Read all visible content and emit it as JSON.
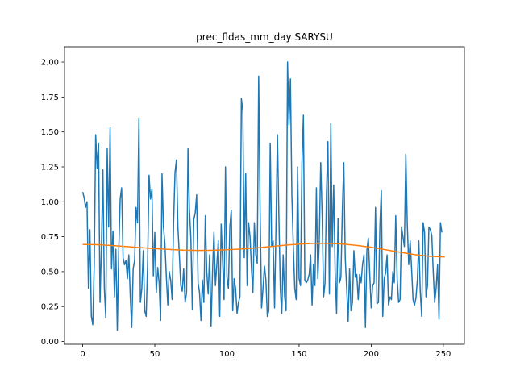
{
  "chart_data": {
    "type": "line",
    "title": "prec_fldas_mm_day SARYSU",
    "xlabel": "",
    "ylabel": "",
    "xlim": [
      -12.6,
      264.6
    ],
    "ylim": [
      -0.02,
      2.11
    ],
    "xticks": [
      0,
      50,
      100,
      150,
      200,
      250
    ],
    "xtick_labels": [
      "0",
      "50",
      "100",
      "150",
      "200",
      "250"
    ],
    "yticks": [
      0.0,
      0.25,
      0.5,
      0.75,
      1.0,
      1.25,
      1.5,
      1.75,
      2.0
    ],
    "ytick_labels": [
      "0.00",
      "0.25",
      "0.50",
      "0.75",
      "1.00",
      "1.25",
      "1.50",
      "1.75",
      "2.00"
    ],
    "grid": false,
    "series": [
      {
        "name": "prec_fldas_mm_day",
        "color": "#1f77b4",
        "x_start": 0,
        "values": [
          1.07,
          1.03,
          0.96,
          1.0,
          0.38,
          0.8,
          0.18,
          0.12,
          0.55,
          1.48,
          1.24,
          1.42,
          0.28,
          0.68,
          1.23,
          0.38,
          0.17,
          1.38,
          0.82,
          1.53,
          0.52,
          0.79,
          0.32,
          0.66,
          0.08,
          0.65,
          1.02,
          1.1,
          0.6,
          0.55,
          0.58,
          0.45,
          0.62,
          0.32,
          0.1,
          0.52,
          0.58,
          0.96,
          0.85,
          1.6,
          0.28,
          0.38,
          0.65,
          0.22,
          0.18,
          0.55,
          1.19,
          1.02,
          1.09,
          0.47,
          0.78,
          0.35,
          0.53,
          0.42,
          0.15,
          1.2,
          0.82,
          0.7,
          0.46,
          0.26,
          0.5,
          0.44,
          0.3,
          0.85,
          1.21,
          1.3,
          0.82,
          0.62,
          0.4,
          0.36,
          0.52,
          0.28,
          0.35,
          1.38,
          0.94,
          0.74,
          0.23,
          0.87,
          0.92,
          1.05,
          0.42,
          0.35,
          0.15,
          0.44,
          0.28,
          0.9,
          0.5,
          0.34,
          0.62,
          0.11,
          0.5,
          0.78,
          0.4,
          0.55,
          0.72,
          0.18,
          0.84,
          0.58,
          0.3,
          1.25,
          0.46,
          0.38,
          0.82,
          0.94,
          0.22,
          0.45,
          0.38,
          0.2,
          0.28,
          0.32,
          1.74,
          1.65,
          0.6,
          1.2,
          0.4,
          0.85,
          0.75,
          0.52,
          0.35,
          0.85,
          0.62,
          0.56,
          1.9,
          0.92,
          0.24,
          0.38,
          0.54,
          0.44,
          0.18,
          0.22,
          1.42,
          0.68,
          0.72,
          0.24,
          0.82,
          1.48,
          0.9,
          0.38,
          0.2,
          0.62,
          0.32,
          0.22,
          2.0,
          1.55,
          1.88,
          1.05,
          0.68,
          0.38,
          0.3,
          1.25,
          0.45,
          0.4,
          1.28,
          1.62,
          0.44,
          0.42,
          0.44,
          0.48,
          0.62,
          0.26,
          0.55,
          0.4,
          1.1,
          0.45,
          0.72,
          1.28,
          0.9,
          0.32,
          0.42,
          1.06,
          1.43,
          0.34,
          1.56,
          0.68,
          1.12,
          0.5,
          0.2,
          0.88,
          0.42,
          0.46,
          0.94,
          1.28,
          0.6,
          0.38,
          0.14,
          0.52,
          0.22,
          0.28,
          0.65,
          0.46,
          0.48,
          0.3,
          0.48,
          0.42,
          0.55,
          0.62,
          0.1,
          0.65,
          0.74,
          0.48,
          0.24,
          0.4,
          0.42,
          0.96,
          0.27,
          0.28,
          0.82,
          1.08,
          0.18,
          0.45,
          0.49,
          0.62,
          0.26,
          0.32,
          0.3,
          0.5,
          0.42,
          0.9,
          0.45,
          0.28,
          0.3,
          0.82,
          0.75,
          0.68,
          1.34,
          0.84,
          0.55,
          0.72,
          0.52,
          0.3,
          0.26,
          0.31,
          0.44,
          0.72,
          0.36,
          0.18,
          0.85,
          0.78,
          0.32,
          0.4,
          0.82,
          0.8,
          0.76,
          0.5,
          0.28,
          0.38,
          0.55,
          0.16,
          0.85,
          0.78
        ]
      },
      {
        "name": "trend",
        "color": "#ff7f0e",
        "x": [
          0,
          10,
          20,
          30,
          40,
          50,
          60,
          70,
          80,
          90,
          100,
          110,
          120,
          130,
          140,
          150,
          160,
          170,
          180,
          190,
          200,
          210,
          220,
          230,
          240,
          251
        ],
        "values": [
          0.695,
          0.693,
          0.687,
          0.68,
          0.672,
          0.665,
          0.659,
          0.654,
          0.652,
          0.653,
          0.657,
          0.662,
          0.67,
          0.679,
          0.689,
          0.697,
          0.702,
          0.703,
          0.698,
          0.688,
          0.674,
          0.657,
          0.639,
          0.622,
          0.61,
          0.605
        ]
      }
    ]
  }
}
